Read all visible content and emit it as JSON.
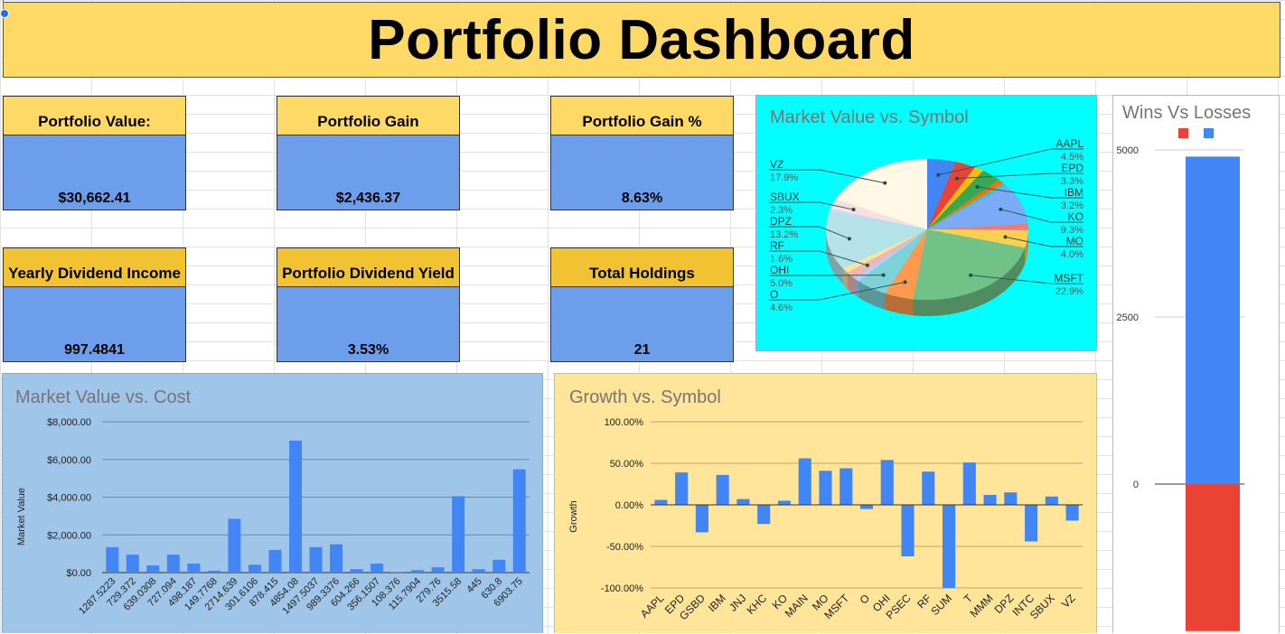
{
  "dashboard": {
    "title": "Portfolio Dashboard"
  },
  "cards": [
    {
      "label": "Portfolio Value:",
      "value": "$30,662.41"
    },
    {
      "label": "Portfolio Gain",
      "value": "$2,436.37"
    },
    {
      "label": "Portfolio Gain %",
      "value": "8.63%"
    },
    {
      "label": "Yearly Dividend Income",
      "value": "997.4841"
    },
    {
      "label": "Portfolio Dividend Yield",
      "value": "3.53%"
    },
    {
      "label": "Total Holdings",
      "value": "21"
    }
  ],
  "colors": {
    "yellow": "#ffd966",
    "blue": "#6d9eeb",
    "bar": "#4285f4",
    "loss": "#ea4335",
    "cyan": "#00ffff"
  },
  "chart_data": [
    {
      "id": "pie",
      "type": "pie",
      "title": "Market Value vs. Symbol",
      "slices": [
        {
          "label": "AAPL",
          "pct": "4.5%",
          "value": 4.5,
          "color": "#4285f4"
        },
        {
          "label": "EPD",
          "pct": "3.3%",
          "value": 3.3,
          "color": "#ea4335"
        },
        {
          "label": "",
          "pct": "",
          "value": 1.5,
          "color": "#fbbc04"
        },
        {
          "label": "IBM",
          "pct": "3.2%",
          "value": 3.2,
          "color": "#34a853"
        },
        {
          "label": "",
          "pct": "",
          "value": 1.0,
          "color": "#ff6d01"
        },
        {
          "label": "",
          "pct": "",
          "value": 0.8,
          "color": "#46bdc6"
        },
        {
          "label": "KO",
          "pct": "9.3%",
          "value": 9.3,
          "color": "#7baaf7"
        },
        {
          "label": "",
          "pct": "",
          "value": 1.5,
          "color": "#f07b72"
        },
        {
          "label": "MO",
          "pct": "4.0%",
          "value": 4.0,
          "color": "#fcd04f"
        },
        {
          "label": "MSFT",
          "pct": "22.9%",
          "value": 22.9,
          "color": "#71c287"
        },
        {
          "label": "O",
          "pct": "4.6%",
          "value": 4.6,
          "color": "#ff994d"
        },
        {
          "label": "OHI",
          "pct": "5.0%",
          "value": 5.0,
          "color": "#7ed1d7"
        },
        {
          "label": "",
          "pct": "",
          "value": 1.0,
          "color": "#b3cefb"
        },
        {
          "label": "RF",
          "pct": "1.6%",
          "value": 1.6,
          "color": "#f7b4ae"
        },
        {
          "label": "",
          "pct": "",
          "value": 1.2,
          "color": "#fde49b"
        },
        {
          "label": "DPZ",
          "pct": "13.2%",
          "value": 13.2,
          "color": "#b5e2e7"
        },
        {
          "label": "",
          "pct": "",
          "value": 0.8,
          "color": "#c6dafc"
        },
        {
          "label": "SBUX",
          "pct": "2.3%",
          "value": 2.3,
          "color": "#f9e0de"
        },
        {
          "label": "VZ",
          "pct": "17.9%",
          "value": 17.9,
          "color": "#fff8e6"
        }
      ]
    },
    {
      "id": "wins",
      "type": "bar",
      "title": "Wins Vs Losses",
      "yticks": [
        "5000",
        "2500",
        "0"
      ],
      "ylim": [
        -2200,
        5000
      ],
      "series": [
        {
          "name": "",
          "value": -2200,
          "color": "#ea4335"
        },
        {
          "name": "",
          "value": 4900,
          "color": "#4285f4"
        }
      ]
    },
    {
      "id": "mvcost",
      "type": "bar",
      "title": "Market Value vs. Cost",
      "ylabel": "Market Value",
      "yticks": [
        "$8,000.00",
        "$6,000.00",
        "$4,000.00",
        "$2,000.00",
        "$0.00"
      ],
      "ylim": [
        0,
        8000
      ],
      "categories": [
        "1287.5223",
        "729.372",
        "639.0308",
        "727.094",
        "498.187",
        "149.7768",
        "2714.639",
        "301.6106",
        "878.415",
        "4854.08",
        "1497.5037",
        "989.3376",
        "604.266",
        "356.1507",
        "108.376",
        "115.7904",
        "279.76",
        "3515.58",
        "445",
        "630.8",
        "6903.75"
      ],
      "values": [
        1350,
        950,
        380,
        950,
        480,
        100,
        2850,
        420,
        1200,
        7000,
        1350,
        1500,
        180,
        480,
        30,
        130,
        280,
        4050,
        180,
        680,
        5480
      ]
    },
    {
      "id": "growth",
      "type": "bar",
      "title": "Growth  vs. Symbol",
      "ylabel": "Growth",
      "yticks": [
        "100.00%",
        "50.00%",
        "0.00%",
        "-50.00%",
        "-100.00%"
      ],
      "ylim": [
        -100,
        100
      ],
      "categories": [
        "AAPL",
        "EPD",
        "GSBD",
        "IBM",
        "JNJ",
        "KHC",
        "KO",
        "MAIN",
        "MO",
        "MSFT",
        "O",
        "OHI",
        "PSEC",
        "RF",
        "SUM",
        "T",
        "MMM",
        "DPZ",
        "INTC",
        "SBUX",
        "VZ"
      ],
      "values": [
        6,
        39,
        -33,
        36,
        7,
        -23,
        5,
        56,
        41,
        44,
        -5,
        54,
        -62,
        40,
        -100,
        51,
        12,
        15,
        -44,
        10,
        -19
      ]
    }
  ]
}
